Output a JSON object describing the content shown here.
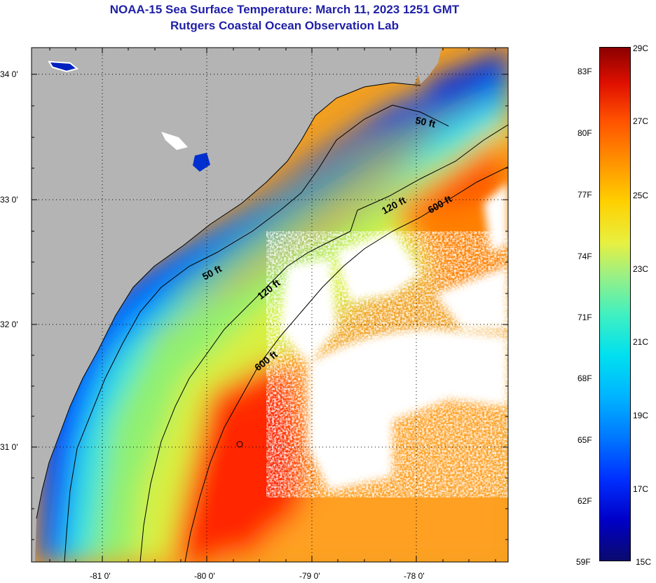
{
  "title": {
    "line1": "NOAA-15 Sea Surface Temperature:  March 11, 2023 1251 GMT",
    "line2": "Rutgers Coastal Ocean Observation Lab"
  },
  "axes": {
    "lat_labels": [
      "34 0'",
      "33 0'",
      "32 0'",
      "31 0'"
    ],
    "lon_labels": [
      "-81 0'",
      "-80 0'",
      "-79 0'",
      "-78 0'"
    ]
  },
  "contours": {
    "c50_a": "50 ft",
    "c50_b": "50 ft",
    "c120_a": "120 ft",
    "c120_b": "120 ft",
    "c600_a": "600 ft",
    "c600_b": "600 ft"
  },
  "colorbar": {
    "fahrenheit": [
      "83F",
      "80F",
      "77F",
      "74F",
      "71F",
      "68F",
      "65F",
      "62F",
      "59F"
    ],
    "celsius": [
      "29C",
      "27C",
      "25C",
      "23C",
      "21C",
      "19C",
      "17C",
      "15C"
    ]
  },
  "colors": {
    "land": "#b4b4b4",
    "cloud": "#ffffff",
    "title": "#1f1fa8"
  }
}
